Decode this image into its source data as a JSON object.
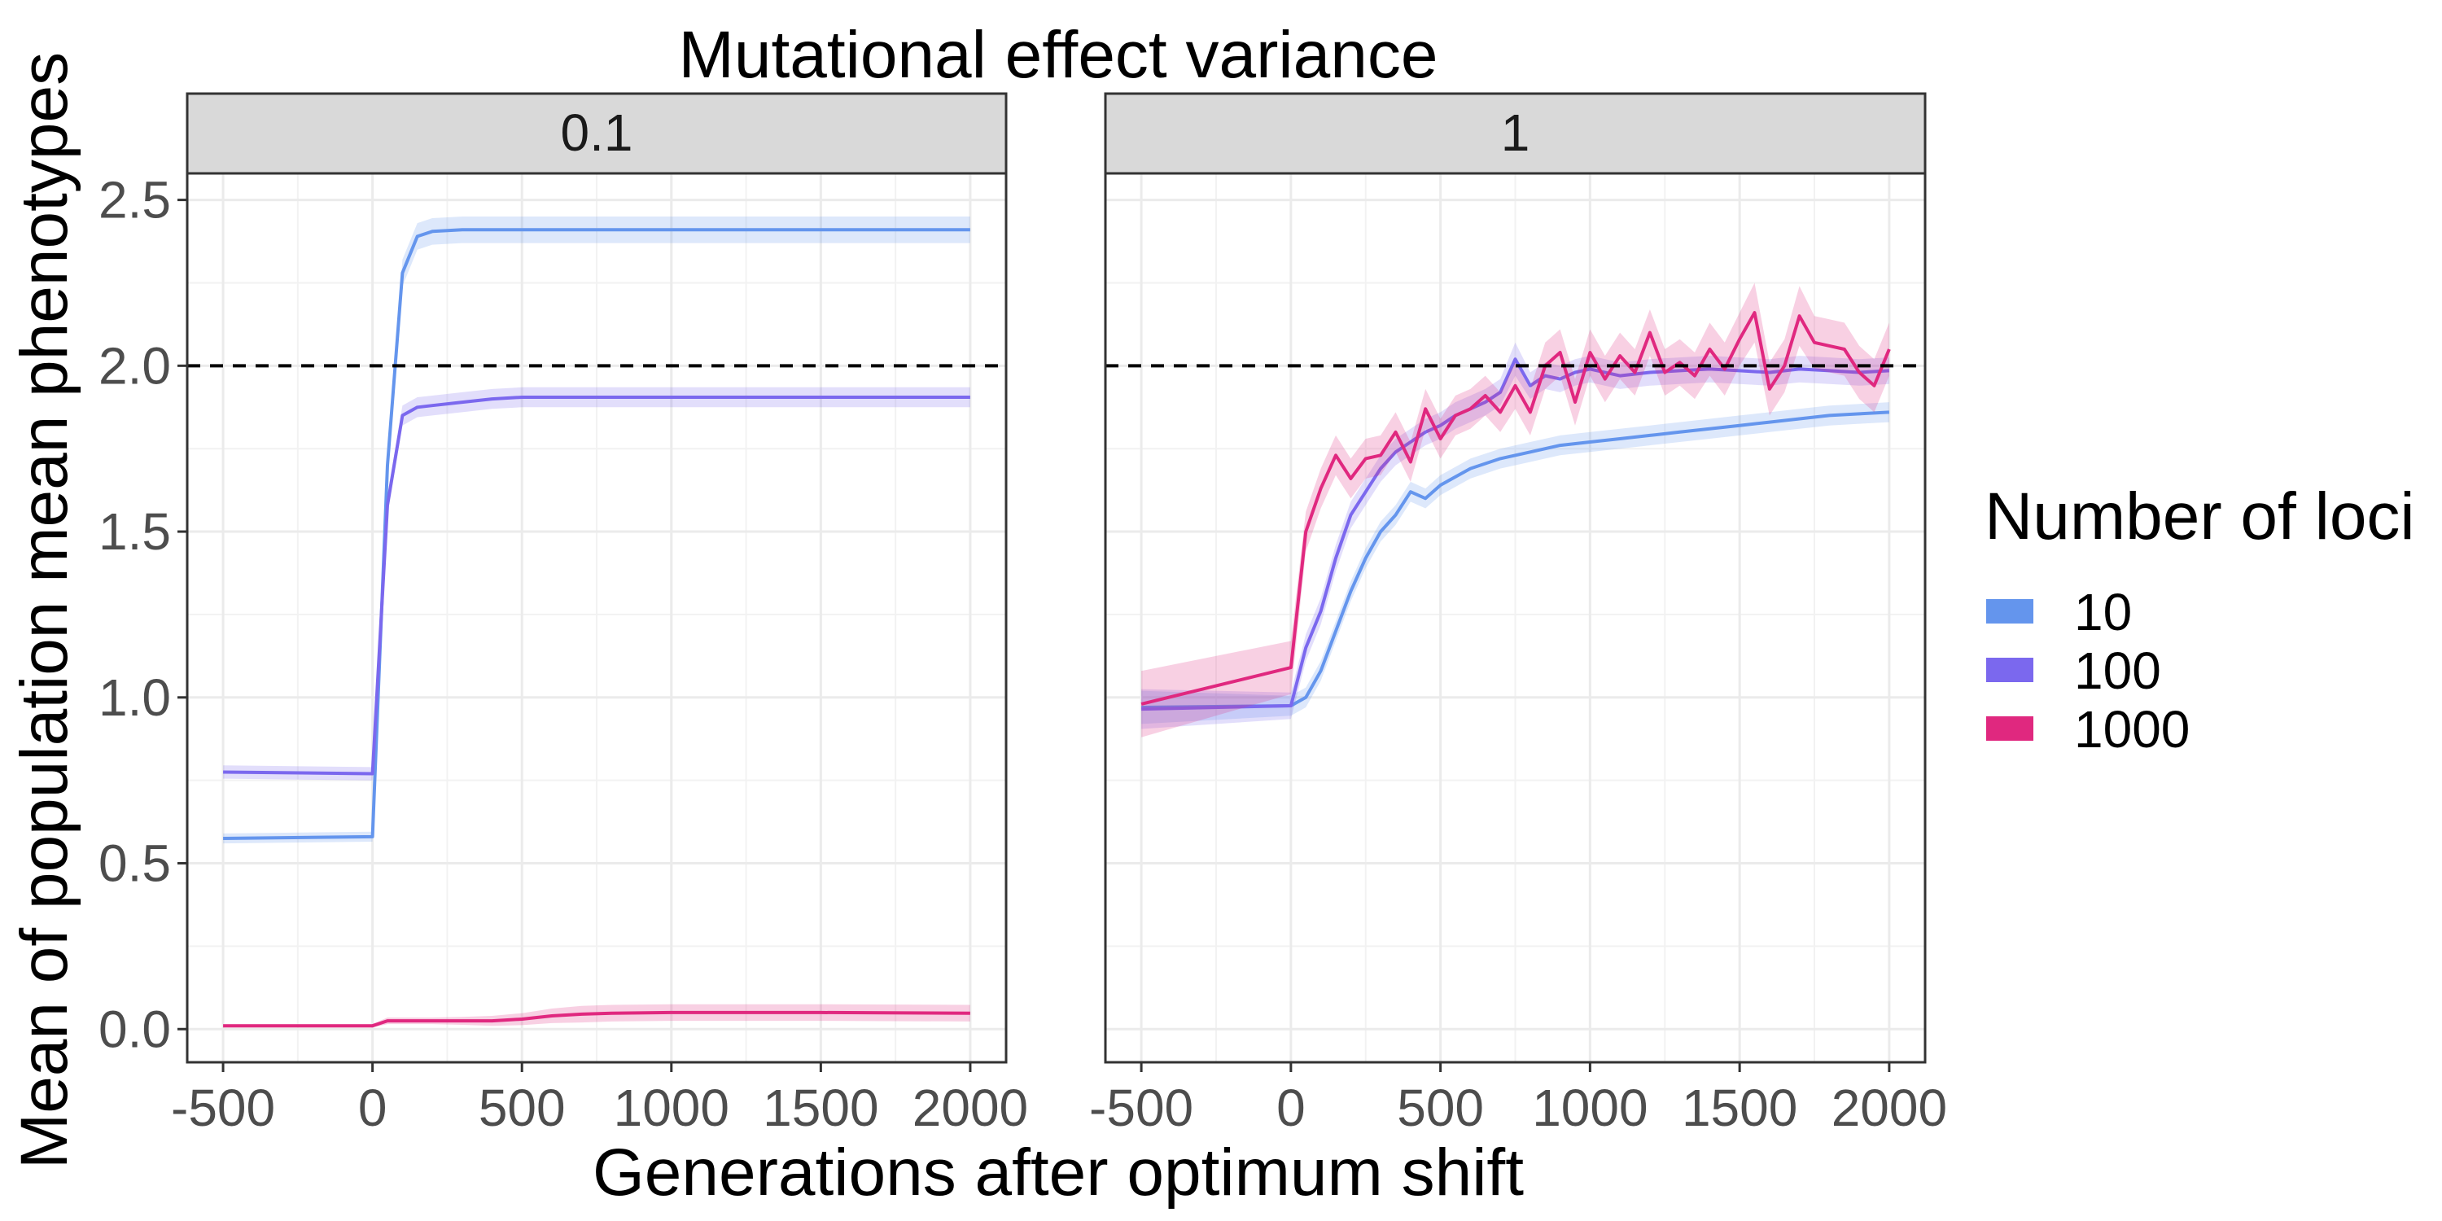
{
  "chart_data": {
    "type": "line",
    "title": "Mutational effect variance",
    "xlabel": "Generations after optimum shift",
    "ylabel": "Mean of population mean phenotypes",
    "x_ticks": [
      "-500",
      "0",
      "500",
      "1000",
      "1500",
      "2000"
    ],
    "y_ticks": [
      "0.0",
      "0.5",
      "1.0",
      "1.5",
      "2.0",
      "2.5"
    ],
    "xlim": [
      -620,
      2120
    ],
    "ylim": [
      -0.1,
      2.58
    ],
    "grid": true,
    "reference_line": {
      "y": 2.0,
      "style": "dashed"
    },
    "legend": {
      "title": "Number of loci",
      "position": "right",
      "entries": [
        {
          "label": "10",
          "color": "#6495ED"
        },
        {
          "label": "100",
          "color": "#7B68EE"
        },
        {
          "label": "1000",
          "color": "#E0287F"
        }
      ]
    },
    "panels": [
      {
        "label": "0.1",
        "series": [
          {
            "name": "10",
            "color": "#6495ED",
            "x": [
              -500,
              0,
              50,
              100,
              150,
              200,
              300,
              500,
              1000,
              1500,
              2000
            ],
            "y": [
              0.575,
              0.58,
              1.7,
              2.28,
              2.39,
              2.405,
              2.41,
              2.41,
              2.41,
              2.41,
              2.41
            ],
            "band": [
              0.015,
              0.015,
              0.03,
              0.04,
              0.04,
              0.04,
              0.04,
              0.04,
              0.04,
              0.04,
              0.04
            ]
          },
          {
            "name": "100",
            "color": "#7B68EE",
            "x": [
              -500,
              0,
              50,
              100,
              150,
              200,
              300,
              400,
              500,
              700,
              1000,
              1500,
              2000
            ],
            "y": [
              0.775,
              0.77,
              1.58,
              1.85,
              1.875,
              1.88,
              1.89,
              1.9,
              1.905,
              1.905,
              1.905,
              1.905,
              1.905
            ],
            "band": [
              0.02,
              0.02,
              0.03,
              0.03,
              0.03,
              0.03,
              0.03,
              0.03,
              0.03,
              0.03,
              0.03,
              0.03,
              0.03
            ]
          },
          {
            "name": "1000",
            "color": "#E0287F",
            "x": [
              -500,
              0,
              50,
              100,
              200,
              300,
              400,
              500,
              600,
              700,
              800,
              1000,
              1500,
              2000
            ],
            "y": [
              0.01,
              0.01,
              0.025,
              0.025,
              0.025,
              0.025,
              0.025,
              0.03,
              0.04,
              0.045,
              0.048,
              0.05,
              0.05,
              0.048
            ],
            "band": [
              0.005,
              0.005,
              0.01,
              0.01,
              0.01,
              0.012,
              0.015,
              0.018,
              0.022,
              0.025,
              0.025,
              0.025,
              0.025,
              0.025
            ]
          }
        ]
      },
      {
        "label": "1",
        "series": [
          {
            "name": "10",
            "color": "#6495ED",
            "x": [
              -500,
              0,
              50,
              100,
              150,
              200,
              250,
              300,
              350,
              400,
              450,
              500,
              600,
              700,
              800,
              900,
              1000,
              1100,
              1200,
              1300,
              1400,
              1500,
              1600,
              1700,
              1800,
              1900,
              2000
            ],
            "y": [
              0.97,
              0.975,
              1.0,
              1.08,
              1.2,
              1.32,
              1.42,
              1.5,
              1.55,
              1.62,
              1.6,
              1.64,
              1.69,
              1.72,
              1.74,
              1.76,
              1.77,
              1.78,
              1.79,
              1.8,
              1.81,
              1.82,
              1.83,
              1.84,
              1.85,
              1.855,
              1.86
            ],
            "band": [
              0.05,
              0.03,
              0.03,
              0.03,
              0.03,
              0.03,
              0.03,
              0.03,
              0.03,
              0.03,
              0.03,
              0.03,
              0.03,
              0.03,
              0.03,
              0.03,
              0.03,
              0.03,
              0.03,
              0.03,
              0.03,
              0.03,
              0.03,
              0.03,
              0.03,
              0.03,
              0.03
            ]
          },
          {
            "name": "100",
            "color": "#7B68EE",
            "x": [
              -500,
              0,
              50,
              100,
              150,
              200,
              250,
              300,
              350,
              400,
              450,
              500,
              550,
              600,
              650,
              700,
              750,
              800,
              850,
              900,
              950,
              1000,
              1100,
              1200,
              1300,
              1400,
              1500,
              1600,
              1700,
              1800,
              1900,
              2000
            ],
            "y": [
              0.965,
              0.975,
              1.15,
              1.26,
              1.42,
              1.55,
              1.62,
              1.69,
              1.74,
              1.77,
              1.8,
              1.82,
              1.85,
              1.87,
              1.89,
              1.92,
              2.02,
              1.94,
              1.97,
              1.96,
              1.98,
              1.99,
              1.97,
              1.98,
              1.985,
              1.99,
              1.985,
              1.98,
              1.99,
              1.985,
              1.98,
              1.985
            ],
            "band": [
              0.06,
              0.04,
              0.04,
              0.04,
              0.04,
              0.04,
              0.04,
              0.04,
              0.04,
              0.04,
              0.04,
              0.04,
              0.04,
              0.04,
              0.04,
              0.04,
              0.05,
              0.04,
              0.04,
              0.04,
              0.04,
              0.04,
              0.04,
              0.04,
              0.04,
              0.04,
              0.04,
              0.04,
              0.04,
              0.04,
              0.04,
              0.04
            ]
          },
          {
            "name": "1000",
            "color": "#E0287F",
            "x": [
              -500,
              0,
              50,
              100,
              150,
              200,
              250,
              300,
              350,
              400,
              450,
              500,
              550,
              600,
              650,
              700,
              750,
              800,
              850,
              900,
              950,
              1000,
              1050,
              1100,
              1150,
              1200,
              1250,
              1300,
              1350,
              1400,
              1450,
              1500,
              1550,
              1600,
              1650,
              1700,
              1750,
              1800,
              1850,
              1900,
              1950,
              2000
            ],
            "y": [
              0.98,
              1.09,
              1.5,
              1.63,
              1.73,
              1.66,
              1.72,
              1.73,
              1.8,
              1.71,
              1.87,
              1.78,
              1.85,
              1.87,
              1.91,
              1.86,
              1.94,
              1.86,
              2.0,
              2.04,
              1.89,
              2.04,
              1.96,
              2.03,
              1.98,
              2.1,
              1.98,
              2.01,
              1.97,
              2.05,
              1.99,
              2.08,
              2.16,
              1.93,
              2.0,
              2.15,
              2.07,
              2.06,
              2.05,
              1.98,
              1.94,
              2.05
            ],
            "band": [
              0.1,
              0.08,
              0.06,
              0.06,
              0.06,
              0.06,
              0.06,
              0.06,
              0.06,
              0.06,
              0.06,
              0.06,
              0.06,
              0.06,
              0.06,
              0.06,
              0.07,
              0.07,
              0.07,
              0.07,
              0.07,
              0.07,
              0.07,
              0.07,
              0.07,
              0.07,
              0.07,
              0.07,
              0.07,
              0.08,
              0.08,
              0.08,
              0.09,
              0.08,
              0.08,
              0.09,
              0.08,
              0.08,
              0.08,
              0.08,
              0.08,
              0.08
            ]
          }
        ]
      }
    ]
  }
}
